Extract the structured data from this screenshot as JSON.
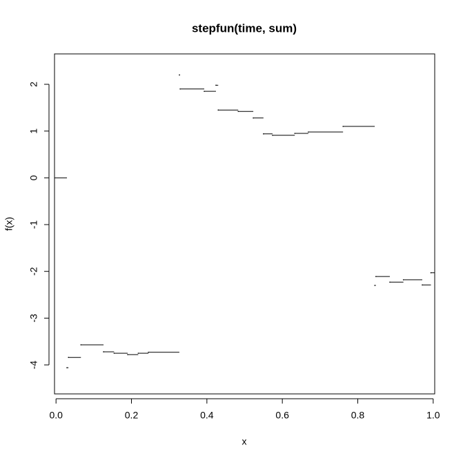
{
  "chart_data": {
    "type": "step",
    "title": "stepfun(time, sum)",
    "x_label": "x",
    "y_label": "f(x)",
    "x": [
      0,
      0.029,
      0.033,
      0.066,
      0.126,
      0.154,
      0.19,
      0.218,
      0.245,
      0.327,
      0.329,
      0.393,
      0.424,
      0.43,
      0.483,
      0.523,
      0.55,
      0.574,
      0.633,
      0.669,
      0.761,
      0.845,
      0.848,
      0.885,
      0.921,
      0.971,
      0.994
    ],
    "values": [
      0,
      -4.06,
      -3.84,
      -3.57,
      -3.72,
      -3.75,
      -3.78,
      -3.75,
      -3.73,
      2.2,
      1.9,
      1.85,
      1.98,
      1.45,
      1.42,
      1.28,
      0.94,
      0.91,
      0.95,
      0.98,
      1.1,
      -2.3,
      -2.11,
      -2.23,
      -2.18,
      -2.29,
      -2.03
    ],
    "color": "#000000",
    "xlim": [
      -0.004,
      1.004
    ],
    "ylim": [
      -4.62,
      2.65
    ],
    "xticks": [
      {
        "value": 0,
        "label": "0.0"
      },
      0.2,
      0.4,
      0.6,
      0.8,
      {
        "value": 1,
        "label": "1.0"
      }
    ],
    "yticks": [
      -4,
      -3,
      -2,
      -1,
      0,
      1,
      2
    ]
  }
}
